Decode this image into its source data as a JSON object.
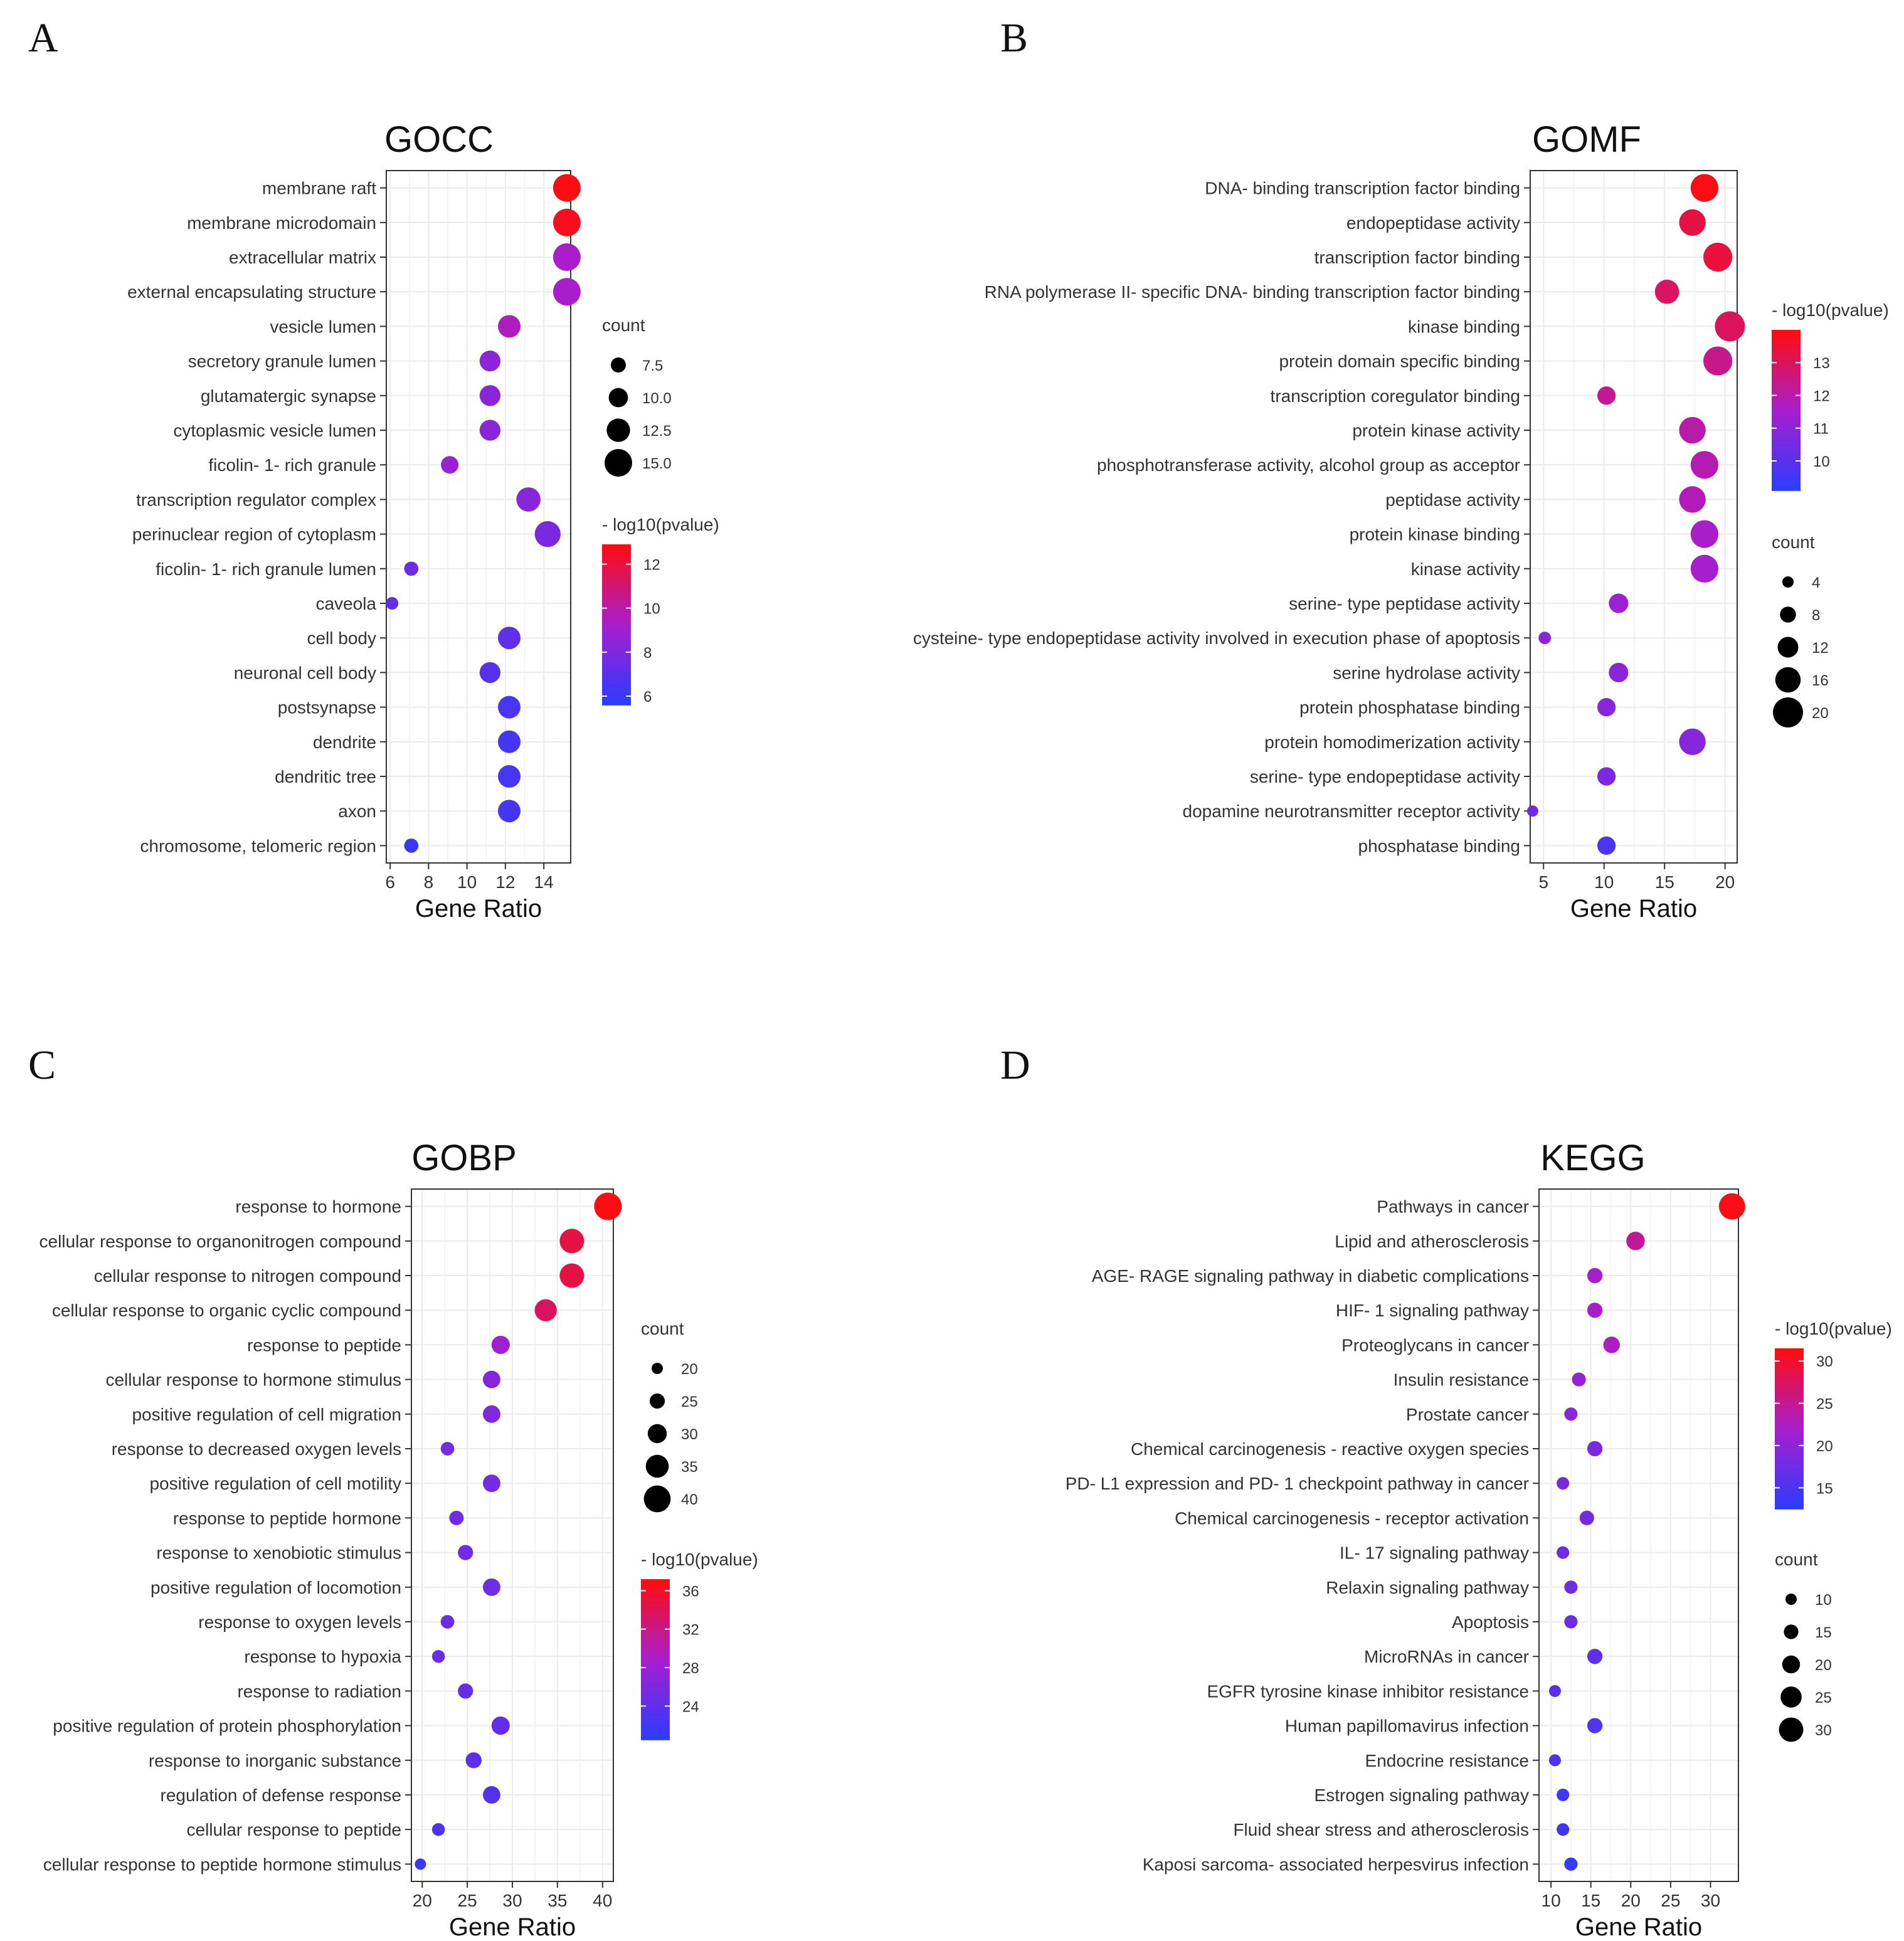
{
  "chart_data": [
    {
      "panel": "A",
      "type": "scatter",
      "title": "GOCC",
      "xlabel": "Gene Ratio",
      "ylabel": "",
      "xlim": [
        5.8,
        15.4
      ],
      "xticks": [
        6,
        8,
        10,
        12,
        14
      ],
      "categories": [
        "membrane raft",
        "membrane microdomain",
        "extracellular matrix",
        "external encapsulating structure",
        "vesicle lumen",
        "secretory granule lumen",
        "glutamatergic synapse",
        "cytoplasmic vesicle lumen",
        "ficolin- 1- rich granule",
        "transcription regulator complex",
        "perinuclear region of cytoplasm",
        "ficolin- 1- rich granule lumen",
        "caveola",
        "cell body",
        "neuronal cell body",
        "postsynapse",
        "dendrite",
        "dendritic tree",
        "axon",
        "chromosome, telomeric region"
      ],
      "x": [
        15.2,
        15.2,
        15.2,
        15.2,
        12.2,
        11.2,
        11.2,
        11.2,
        9.1,
        13.2,
        14.2,
        7.1,
        6.1,
        12.2,
        11.2,
        12.2,
        12.2,
        12.2,
        12.2,
        7.1
      ],
      "count": [
        15,
        15,
        15,
        15,
        12,
        11,
        11,
        11,
        9,
        13,
        14,
        7,
        6,
        12,
        11,
        12,
        12,
        12,
        12,
        7
      ],
      "pvalue_log": [
        12.8,
        12.6,
        9.3,
        9.3,
        9.5,
        8.4,
        8.4,
        8.4,
        8.8,
        8.3,
        7.9,
        7.4,
        7.2,
        7.1,
        6.9,
        6.5,
        6.4,
        6.4,
        6.4,
        6.0
      ],
      "size_legend": {
        "title": "count",
        "values": [
          7.5,
          10.0,
          12.5,
          15.0
        ],
        "labels": [
          "7.5",
          "10.0",
          "12.5",
          "15.0"
        ],
        "range": [
          6,
          15
        ]
      },
      "color_legend": {
        "title": "- log10(pvalue)",
        "ticks": [
          6,
          8,
          10,
          12
        ],
        "range": [
          5.6,
          12.9
        ]
      }
    },
    {
      "panel": "B",
      "type": "scatter",
      "title": "GOMF",
      "xlabel": "Gene Ratio",
      "ylabel": "",
      "xlim": [
        3.9,
        21
      ],
      "xticks": [
        5,
        10,
        15,
        20
      ],
      "categories": [
        "DNA- binding transcription factor binding",
        "endopeptidase activity",
        "transcription factor binding",
        "RNA polymerase II- specific DNA- binding transcription factor binding",
        "kinase binding",
        "protein domain specific binding",
        "transcription coregulator binding",
        "protein kinase activity",
        "phosphotransferase activity, alcohol group as acceptor",
        "peptidase activity",
        "protein kinase binding",
        "kinase activity",
        "serine- type peptidase activity",
        "cysteine- type endopeptidase activity involved in execution phase of apoptosis",
        "serine hydrolase activity",
        "protein phosphatase binding",
        "protein homodimerization activity",
        "serine- type endopeptidase activity",
        "dopamine neurotransmitter receptor activity",
        "phosphatase binding"
      ],
      "x": [
        18.3,
        17.3,
        19.4,
        15.2,
        20.4,
        19.4,
        10.2,
        17.3,
        18.3,
        17.3,
        18.3,
        18.3,
        11.2,
        5.1,
        11.2,
        10.2,
        17.3,
        10.2,
        4.1,
        10.2
      ],
      "count": [
        18,
        17,
        19,
        15,
        20,
        19,
        10,
        17,
        18,
        17,
        18,
        18,
        11,
        5,
        11,
        10,
        17,
        10,
        4,
        10
      ],
      "pvalue_log": [
        13.9,
        13.3,
        13.4,
        12.9,
        13.0,
        12.4,
        12.3,
        12.0,
        11.9,
        11.8,
        11.6,
        11.5,
        11.3,
        11.0,
        11.0,
        10.9,
        10.9,
        10.7,
        10.5,
        9.7
      ],
      "size_legend": {
        "title": "count",
        "values": [
          4,
          8,
          12,
          16,
          20
        ],
        "labels": [
          "4",
          "8",
          "12",
          "16",
          "20"
        ],
        "range": [
          4,
          20
        ]
      },
      "color_legend": {
        "title": "- log10(pvalue)",
        "ticks": [
          10,
          11,
          12,
          13
        ],
        "range": [
          9.1,
          14.0
        ]
      }
    },
    {
      "panel": "C",
      "type": "scatter",
      "title": "GOBP",
      "xlabel": "Gene Ratio",
      "ylabel": "",
      "xlim": [
        18.8,
        41.2
      ],
      "xticks": [
        20,
        25,
        30,
        35,
        40
      ],
      "categories": [
        "response to hormone",
        "cellular response to organonitrogen compound",
        "cellular response to nitrogen compound",
        "cellular response to organic cyclic compound",
        "response to peptide",
        "cellular response to hormone stimulus",
        "positive regulation of cell migration",
        "response to decreased oxygen levels",
        "positive regulation of cell motility",
        "response to peptide hormone",
        "response to xenobiotic stimulus",
        "positive regulation of locomotion",
        "response to oxygen levels",
        "response to hypoxia",
        "response to radiation",
        "positive regulation of protein phosphorylation",
        "response to inorganic substance",
        "regulation of defense response",
        "cellular response to peptide",
        "cellular response to peptide hormone stimulus"
      ],
      "x": [
        40.6,
        36.6,
        36.6,
        33.7,
        28.7,
        27.7,
        27.7,
        22.8,
        27.7,
        23.8,
        24.8,
        27.7,
        22.8,
        21.8,
        24.8,
        28.7,
        25.7,
        27.7,
        21.8,
        19.8
      ],
      "count": [
        41,
        37,
        37,
        34,
        29,
        28,
        28,
        23,
        28,
        24,
        25,
        28,
        23,
        22,
        25,
        29,
        26,
        28,
        22,
        20
      ],
      "pvalue_log": [
        37.0,
        34.8,
        34.8,
        33.6,
        28.2,
        26.5,
        26.1,
        25.5,
        25.5,
        25.2,
        25.1,
        24.9,
        24.8,
        24.6,
        24.2,
        24.1,
        23.8,
        23.2,
        22.8,
        21.3
      ],
      "size_legend": {
        "title": "count",
        "values": [
          20,
          25,
          30,
          35,
          40
        ],
        "labels": [
          "20",
          "25",
          "30",
          "35",
          "40"
        ],
        "range": [
          20,
          41
        ]
      },
      "color_legend": {
        "title": "- log10(pvalue)",
        "ticks": [
          24,
          28,
          32,
          36
        ],
        "range": [
          20.5,
          37.2
        ]
      }
    },
    {
      "panel": "D",
      "type": "scatter",
      "title": "KEGG",
      "xlabel": "Gene Ratio",
      "ylabel": "",
      "xlim": [
        8.5,
        33.5
      ],
      "xticks": [
        10,
        15,
        20,
        25,
        30
      ],
      "categories": [
        "Pathways in cancer",
        "Lipid and atherosclerosis",
        "AGE- RAGE signaling pathway in diabetic complications",
        "HIF- 1 signaling pathway",
        "Proteoglycans in cancer",
        "Insulin resistance",
        "Prostate cancer",
        "Chemical carcinogenesis -  reactive oxygen species",
        "PD- L1 expression and PD- 1 checkpoint pathway in cancer",
        "Chemical carcinogenesis -  receptor activation",
        "IL- 17 signaling pathway",
        "Relaxin signaling pathway",
        "Apoptosis",
        "MicroRNAs in cancer",
        "EGFR tyrosine kinase inhibitor resistance",
        "Human papillomavirus infection",
        "Endocrine resistance",
        "Estrogen signaling pathway",
        "Fluid shear stress and atherosclerosis",
        "Kaposi sarcoma- associated herpesvirus infection"
      ],
      "x": [
        32.7,
        20.6,
        15.5,
        15.5,
        17.6,
        13.5,
        12.5,
        15.5,
        11.5,
        14.5,
        11.5,
        12.5,
        12.5,
        15.5,
        10.5,
        15.5,
        10.5,
        11.5,
        11.5,
        12.5
      ],
      "count": [
        33,
        21,
        16,
        16,
        18,
        14,
        13,
        16,
        12,
        15,
        12,
        13,
        13,
        16,
        11,
        16,
        11,
        12,
        12,
        13
      ],
      "pvalue_log": [
        31.0,
        24.5,
        22.0,
        22.0,
        22.5,
        20.5,
        19.5,
        18.5,
        18.5,
        18.0,
        18.0,
        17.5,
        17.5,
        16.5,
        16.0,
        15.5,
        15.0,
        14.0,
        14.0,
        13.5
      ],
      "size_legend": {
        "title": "count",
        "values": [
          10,
          15,
          20,
          25,
          30
        ],
        "labels": [
          "10",
          "15",
          "20",
          "25",
          "30"
        ],
        "range": [
          10,
          33
        ]
      },
      "color_legend": {
        "title": "- log10(pvalue)",
        "ticks": [
          15,
          20,
          25,
          30
        ],
        "range": [
          12.5,
          31.5
        ]
      }
    }
  ]
}
